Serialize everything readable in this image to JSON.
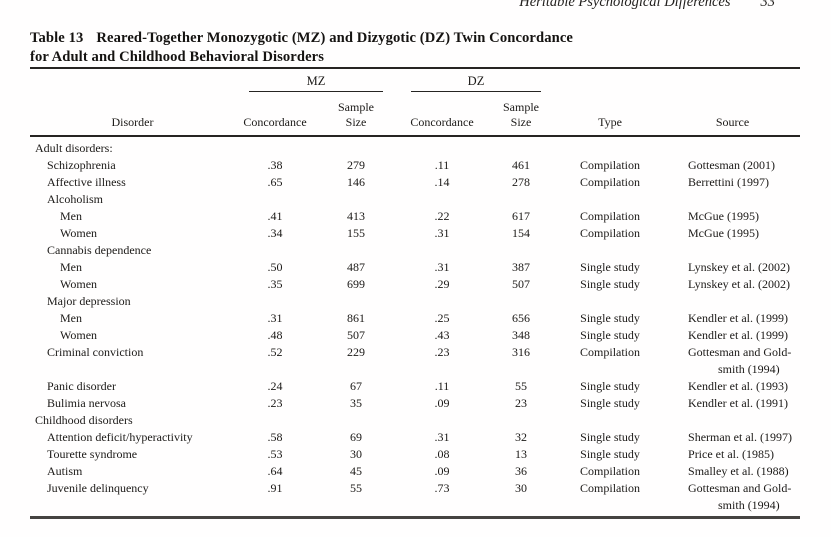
{
  "running_head": {
    "title": "Heritable Psychological Differences",
    "page_number": "33"
  },
  "table": {
    "caption_label": "Table 13",
    "caption_title_line1": "Reared-Together Monozygotic (MZ) and Dizygotic (DZ) Twin Concordance",
    "caption_title_line2": "for Adult and Childhood Behavioral Disorders",
    "spanners": {
      "mz": "MZ",
      "dz": "DZ"
    },
    "headers": {
      "disorder": "Disorder",
      "concordance": "Concordance",
      "sample_line1": "Sample",
      "sample_line2": "Size",
      "type": "Type",
      "source": "Source"
    },
    "rows": [
      {
        "label": "Adult disorders:",
        "indent": 0
      },
      {
        "label": "Schizophrenia",
        "indent": 1,
        "mz": ".38",
        "mz_n": "279",
        "dz": ".11",
        "dz_n": "461",
        "type": "Compilation",
        "source": "Gottesman (2001)"
      },
      {
        "label": "Affective illness",
        "indent": 1,
        "mz": ".65",
        "mz_n": "146",
        "dz": ".14",
        "dz_n": "278",
        "type": "Compilation",
        "source": "Berrettini (1997)"
      },
      {
        "label": "Alcoholism",
        "indent": 1
      },
      {
        "label": "Men",
        "indent": 2,
        "mz": ".41",
        "mz_n": "413",
        "dz": ".22",
        "dz_n": "617",
        "type": "Compilation",
        "source": "McGue (1995)"
      },
      {
        "label": "Women",
        "indent": 2,
        "mz": ".34",
        "mz_n": "155",
        "dz": ".31",
        "dz_n": "154",
        "type": "Compilation",
        "source": "McGue (1995)"
      },
      {
        "label": "Cannabis dependence",
        "indent": 1
      },
      {
        "label": "Men",
        "indent": 2,
        "mz": ".50",
        "mz_n": "487",
        "dz": ".31",
        "dz_n": "387",
        "type": "Single study",
        "source": "Lynskey et al. (2002)"
      },
      {
        "label": "Women",
        "indent": 2,
        "mz": ".35",
        "mz_n": "699",
        "dz": ".29",
        "dz_n": "507",
        "type": "Single study",
        "source": "Lynskey et al. (2002)"
      },
      {
        "label": "Major depression",
        "indent": 1
      },
      {
        "label": "Men",
        "indent": 2,
        "mz": ".31",
        "mz_n": "861",
        "dz": ".25",
        "dz_n": "656",
        "type": "Single study",
        "source": "Kendler et al. (1999)"
      },
      {
        "label": "Women",
        "indent": 2,
        "mz": ".48",
        "mz_n": "507",
        "dz": ".43",
        "dz_n": "348",
        "type": "Single study",
        "source": "Kendler et al. (1999)"
      },
      {
        "label": "Criminal conviction",
        "indent": 1,
        "mz": ".52",
        "mz_n": "229",
        "dz": ".23",
        "dz_n": "316",
        "type": "Compilation",
        "source": "Gottesman and Gold-\nsmith (1994)"
      },
      {
        "label": "Panic disorder",
        "indent": 1,
        "mz": ".24",
        "mz_n": "67",
        "dz": ".11",
        "dz_n": "55",
        "type": "Single study",
        "source": "Kendler et al. (1993)"
      },
      {
        "label": "Bulimia nervosa",
        "indent": 1,
        "mz": ".23",
        "mz_n": "35",
        "dz": ".09",
        "dz_n": "23",
        "type": "Single study",
        "source": "Kendler et al. (1991)"
      },
      {
        "label": "Childhood disorders",
        "indent": 0
      },
      {
        "label": "Attention deficit/hyperactivity",
        "indent": 1,
        "mz": ".58",
        "mz_n": "69",
        "dz": ".31",
        "dz_n": "32",
        "type": "Single study",
        "source": "Sherman et al. (1997)"
      },
      {
        "label": "Tourette syndrome",
        "indent": 1,
        "mz": ".53",
        "mz_n": "30",
        "dz": ".08",
        "dz_n": "13",
        "type": "Single study",
        "source": "Price et al. (1985)"
      },
      {
        "label": "Autism",
        "indent": 1,
        "mz": ".64",
        "mz_n": "45",
        "dz": ".09",
        "dz_n": "36",
        "type": "Compilation",
        "source": "Smalley et al. (1988)"
      },
      {
        "label": "Juvenile delinquency",
        "indent": 1,
        "mz": ".91",
        "mz_n": "55",
        "dz": ".73",
        "dz_n": "30",
        "type": "Compilation",
        "source": "Gottesman and Gold-\nsmith (1994)"
      }
    ]
  }
}
